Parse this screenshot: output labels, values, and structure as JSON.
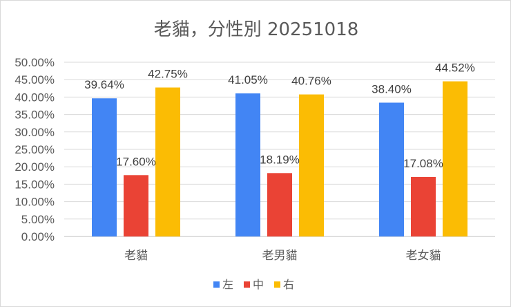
{
  "chart_data": {
    "type": "bar",
    "title": "老貓，分性別 20251018",
    "categories": [
      "老貓",
      "老男貓",
      "老女貓"
    ],
    "series": [
      {
        "name": "左",
        "color": "#4285f4",
        "values": [
          39.64,
          41.05,
          38.4
        ],
        "labels": [
          "39.64%",
          "41.05%",
          "38.40%"
        ]
      },
      {
        "name": "中",
        "color": "#ea4335",
        "values": [
          17.6,
          18.19,
          17.08
        ],
        "labels": [
          "17.60%",
          "18.19%",
          "17.08%"
        ]
      },
      {
        "name": "右",
        "color": "#fbbc04",
        "values": [
          42.75,
          40.76,
          44.52
        ],
        "labels": [
          "42.75%",
          "40.76%",
          "44.52%"
        ]
      }
    ],
    "ylim": [
      0,
      50
    ],
    "yticks": [
      0,
      5,
      10,
      15,
      20,
      25,
      30,
      35,
      40,
      45,
      50
    ],
    "ytick_labels": [
      "0.00%",
      "5.00%",
      "10.00%",
      "15.00%",
      "20.00%",
      "25.00%",
      "30.00%",
      "35.00%",
      "40.00%",
      "45.00%",
      "50.00%"
    ],
    "grid": true,
    "legend": "bottom"
  }
}
